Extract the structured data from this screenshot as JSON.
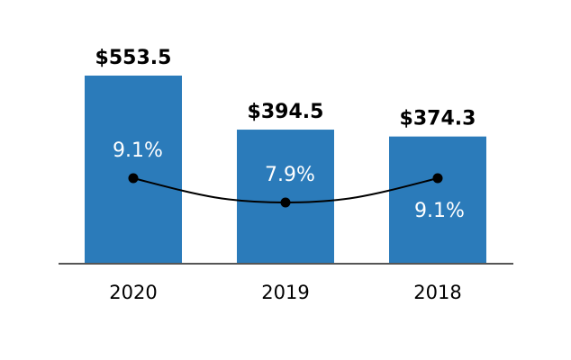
{
  "chart_data": {
    "type": "bar",
    "categories": [
      "2020",
      "2019",
      "2018"
    ],
    "values": [
      553.5,
      394.5,
      374.3
    ],
    "value_labels": [
      "$553.5",
      "$394.5",
      "$374.3"
    ],
    "line_series": {
      "values": [
        9.1,
        7.9,
        9.1
      ],
      "labels": [
        "9.1%",
        "7.9%",
        "9.1%"
      ]
    },
    "title": "",
    "xlabel": "",
    "ylabel": "",
    "grid": false,
    "colors": {
      "bar": "#2b7bba",
      "line": "#000000",
      "axis": "#555555"
    }
  }
}
